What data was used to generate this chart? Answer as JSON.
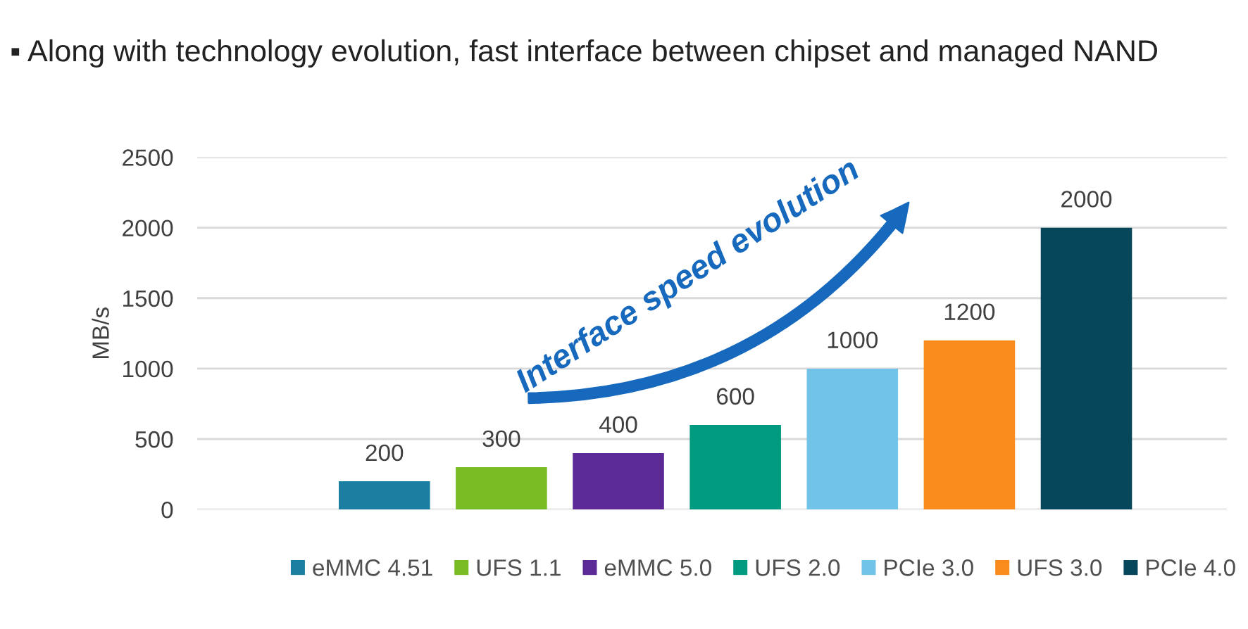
{
  "chart_data": {
    "type": "bar",
    "title": "▪ Along with technology evolution, fast interface between chipset and managed NAND",
    "ylabel": "MB/s",
    "annotations": [
      "Interface speed evolution"
    ],
    "categories": [
      null,
      null,
      null,
      null,
      null,
      null,
      null
    ],
    "series": [
      {
        "name": "eMMC 4.51",
        "color": "#1a7fa0",
        "values": [
          200,
          null,
          null,
          null,
          null,
          null,
          null
        ]
      },
      {
        "name": "UFS 1.1",
        "color": "#78bb22",
        "values": [
          null,
          300,
          null,
          null,
          null,
          null,
          null
        ]
      },
      {
        "name": "eMMC 5.0",
        "color": "#5c2a96",
        "values": [
          null,
          null,
          400,
          null,
          null,
          null,
          null
        ]
      },
      {
        "name": "UFS 2.0",
        "color": "#009a80",
        "values": [
          null,
          null,
          null,
          600,
          null,
          null,
          null
        ]
      },
      {
        "name": "PCIe 3.0",
        "color": "#72c3e8",
        "values": [
          null,
          null,
          null,
          null,
          1000,
          null,
          null
        ]
      },
      {
        "name": "UFS 3.0",
        "color": "#f98b1c",
        "values": [
          null,
          null,
          null,
          null,
          null,
          1200,
          null
        ]
      },
      {
        "name": "PCIe 4.0",
        "color": "#07475c",
        "values": [
          null,
          null,
          null,
          null,
          null,
          null,
          2000
        ]
      }
    ],
    "ylim": [
      0,
      2500
    ],
    "yticks": [
      0,
      500,
      1000,
      1500,
      2000,
      2500
    ],
    "grid": "y",
    "legend": "bottom",
    "stacked": true,
    "data_labels": true
  }
}
